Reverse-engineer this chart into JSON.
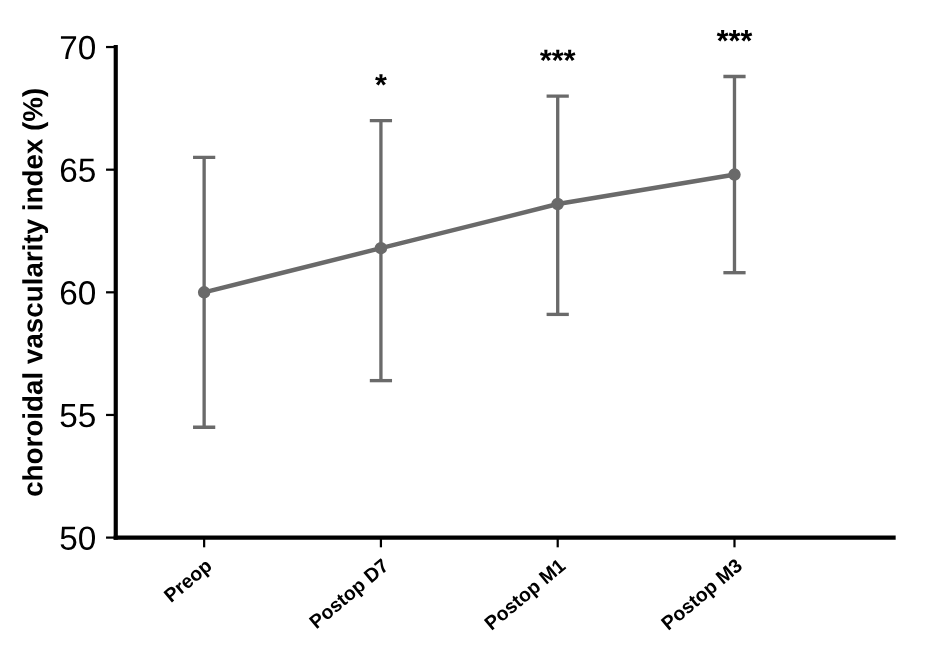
{
  "chart_data": {
    "type": "line",
    "ylabel": "choroidal vascularity index (%)",
    "categories": [
      "Preop",
      "Postop D7",
      "Postop M1",
      "Postop M3"
    ],
    "series": [
      {
        "color": "#6a6a6a",
        "values": [
          60.0,
          61.8,
          63.6,
          64.8
        ],
        "errors": [
          [
            54.5,
            65.5
          ],
          [
            56.4,
            67.0
          ],
          [
            59.1,
            68.0
          ],
          [
            60.8,
            68.8
          ]
        ]
      }
    ],
    "ylim": [
      50,
      70
    ],
    "yticks": [
      50,
      55,
      60,
      65,
      70
    ],
    "grid": false,
    "legend": false,
    "marker": "circle",
    "line_style": "solid",
    "annotations": [
      "*",
      "***",
      "***"
    ]
  }
}
